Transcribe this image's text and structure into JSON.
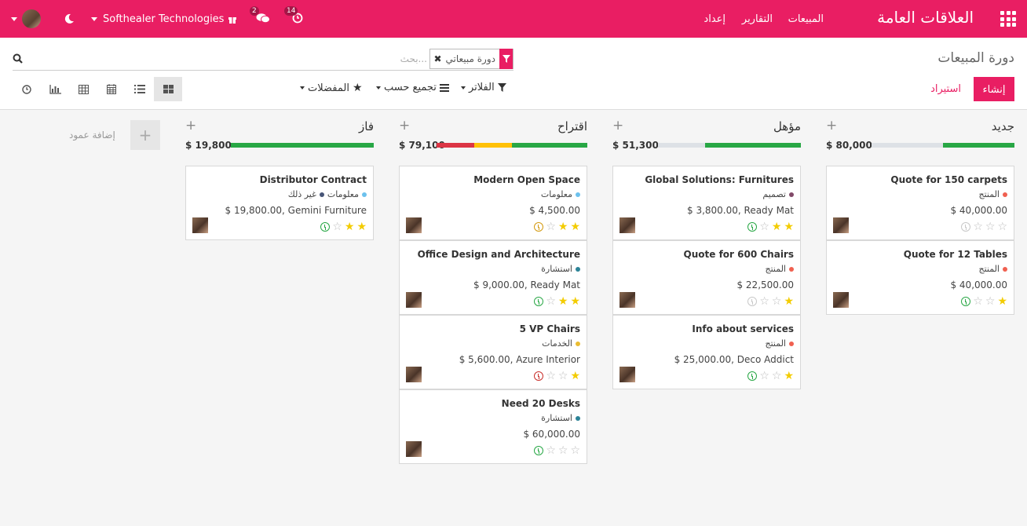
{
  "navbar": {
    "brand": "العلاقات العامة",
    "menu": [
      "المبيعات",
      "التقارير",
      "إعداد"
    ],
    "company": "Softhealer Technologies",
    "messages_count": "2",
    "activities_count": "14"
  },
  "control_panel": {
    "breadcrumb": "دورة المبيعات",
    "search": {
      "facet": "دورة مبيعاتي",
      "placeholder": "بحث..."
    },
    "create_label": "إنشاء",
    "import_label": "استيراد",
    "filters_label": "الفلاتر",
    "groupby_label": "تجميع حسب",
    "favorites_label": "المفضلات",
    "views": [
      "kanban",
      "list",
      "calendar",
      "pivot",
      "graph",
      "activity"
    ],
    "active_view": "kanban"
  },
  "colors": {
    "accent": "#e91e63",
    "progress_green": "#28a745",
    "progress_red": "#dc3545",
    "progress_orange": "#ffc107"
  },
  "columns": [
    {
      "title": "جديد",
      "total": "80,000",
      "currency": "$",
      "progress": [
        {
          "color": "green",
          "fraction": 0.5
        }
      ],
      "cards": [
        {
          "title": "Quote for 150 carpets",
          "tags": [
            {
              "label": "المنتج",
              "color": "#f06050"
            }
          ],
          "amount": "$ 40,000.00",
          "stars": 0,
          "activity": "none"
        },
        {
          "title": "Quote for 12 Tables",
          "tags": [
            {
              "label": "المنتج",
              "color": "#f06050"
            }
          ],
          "amount": "$ 40,000.00",
          "stars": 1,
          "activity": "ok"
        }
      ]
    },
    {
      "title": "مؤهل",
      "total": "51,300",
      "currency": "$",
      "progress": [
        {
          "color": "green",
          "fraction": 0.67
        }
      ],
      "cards": [
        {
          "title": "Global Solutions: Furnitures",
          "tags": [
            {
              "label": "تصميم",
              "color": "#814968"
            }
          ],
          "amount": "$ 3,800.00, Ready Mat",
          "stars": 2,
          "activity": "ok"
        },
        {
          "title": "Quote for 600 Chairs",
          "tags": [
            {
              "label": "المنتج",
              "color": "#f06050"
            }
          ],
          "amount": "$ 22,500.00",
          "stars": 1,
          "activity": "none"
        },
        {
          "title": "Info about services",
          "tags": [
            {
              "label": "المنتج",
              "color": "#f06050"
            }
          ],
          "amount": "$ 25,000.00, Deco Addict",
          "stars": 1,
          "activity": "ok"
        }
      ]
    },
    {
      "title": "اقتراح",
      "total": "79,100",
      "currency": "$",
      "progress": [
        {
          "color": "green",
          "fraction": 0.5
        },
        {
          "color": "orange",
          "fraction": 0.25
        },
        {
          "color": "red",
          "fraction": 0.25
        }
      ],
      "cards": [
        {
          "title": "Modern Open Space",
          "tags": [
            {
              "label": "معلومات",
              "color": "#6cc1ed"
            }
          ],
          "amount": "$ 4,500.00",
          "stars": 2,
          "activity": "warn"
        },
        {
          "title": "Office Design and Architecture",
          "tags": [
            {
              "label": "استشارة",
              "color": "#2c8397"
            }
          ],
          "amount": "$ 9,000.00, Ready Mat",
          "stars": 2,
          "activity": "ok"
        },
        {
          "title": "5 VP Chairs",
          "tags": [
            {
              "label": "الخدمات",
              "color": "#eabc32"
            }
          ],
          "amount": "$ 5,600.00, Azure Interior",
          "stars": 1,
          "activity": "late"
        },
        {
          "title": "Need 20 Desks",
          "tags": [
            {
              "label": "استشارة",
              "color": "#2c8397"
            }
          ],
          "amount": "$ 60,000.00",
          "stars": 0,
          "activity": "ok"
        }
      ]
    },
    {
      "title": "فاز",
      "total": "19,800",
      "currency": "$",
      "progress": [
        {
          "color": "green",
          "fraction": 1
        }
      ],
      "cards": [
        {
          "title": "Distributor Contract",
          "tags": [
            {
              "label": "معلومات",
              "color": "#6cc1ed"
            },
            {
              "label": "غير ذلك",
              "color": "#475577"
            }
          ],
          "amount": "$ 19,800.00, Gemini Furniture",
          "stars": 2,
          "activity": "ok"
        }
      ]
    }
  ],
  "add_column_label": "إضافة عمود"
}
